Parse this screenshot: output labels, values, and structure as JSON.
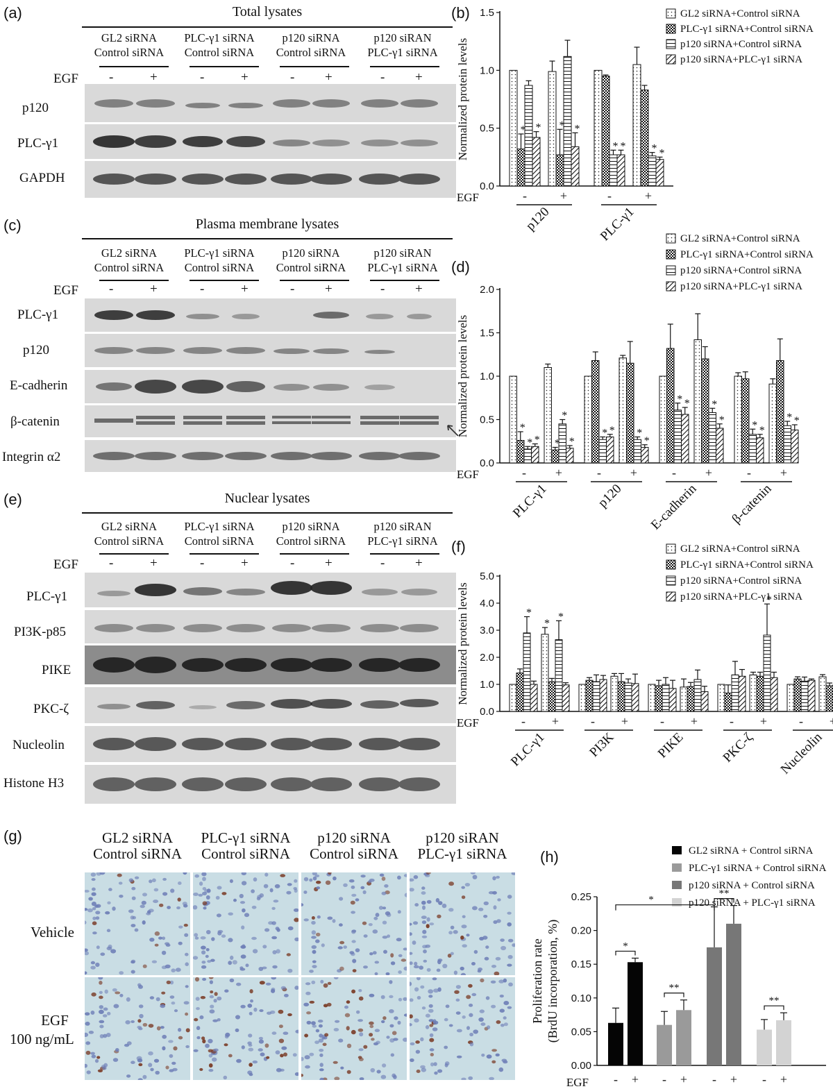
{
  "colors": {
    "blot_bg": "#d9d9d9",
    "band": "#3a3a3a",
    "cell_bg": "#c9dde4",
    "nucleus": "#6f7fb7",
    "brdu_nucleus": "#7a3b26"
  },
  "panels": {
    "a": "(a)",
    "b": "(b)",
    "c": "(c)",
    "d": "(d)",
    "e": "(e)",
    "f": "(f)",
    "g": "(g)",
    "h": "(h)"
  },
  "lane_groups": [
    {
      "line1": "GL2 siRNA",
      "line2": "Control siRNA"
    },
    {
      "line1": "PLC-γ1 siRNA",
      "line2": "Control siRNA"
    },
    {
      "line1": "p120 siRNA",
      "line2": "Control siRNA"
    },
    {
      "line1": "p120 siRAN",
      "line2": "PLC-γ1 siRNA"
    }
  ],
  "egf_label": "EGF",
  "egf_signs": [
    "-",
    "+"
  ],
  "blots": {
    "total": {
      "title": "Total lysates",
      "rows": [
        "p120",
        "PLC-γ1",
        "GAPDH"
      ]
    },
    "membrane": {
      "title": "Plasma membrane lysates",
      "rows": [
        "PLC-γ1",
        "p120",
        "E-cadherin",
        "β-catenin",
        "Integrin α2"
      ]
    },
    "nuclear": {
      "title": "Nuclear lysates",
      "rows": [
        "PLC-γ1",
        "PI3K-p85",
        "PIKE",
        "PKC-ζ",
        "Nucleolin",
        "Histone H3"
      ]
    }
  },
  "legend_bar": [
    "GL2 siRNA+Control siRNA",
    "PLC-γ1 siRNA+Control siRNA",
    "p120 siRNA+Control siRNA",
    "p120 siRNA+PLC-γ1 siRNA"
  ],
  "legend_h": [
    "GL2 siRNA + Control siRNA",
    "PLC-γ1 siRNA + Control siRNA",
    "p120 siRNA + Control siRNA",
    "p120 siRNA + PLC-γ1 siRNA"
  ],
  "histology": {
    "row_labels": [
      "Vehicle",
      "EGF"
    ],
    "egf_dose": "100 ng/mL",
    "groups": [
      {
        "line1": "GL2 siRNA",
        "line2": "Control siRNA"
      },
      {
        "line1": "PLC-γ1 siRNA",
        "line2": "Control siRNA"
      },
      {
        "line1": "p120 siRNA",
        "line2": "Control siRNA"
      },
      {
        "line1": "p120 siRAN",
        "line2": "PLC-γ1 siRNA"
      }
    ]
  },
  "chart_data": [
    {
      "panel": "(b)",
      "type": "bar",
      "ylabel": "Normalized protein levels",
      "ylim": [
        0,
        1.5
      ],
      "yticks": [
        "0.0",
        "0.5",
        "1.0",
        "1.5"
      ],
      "proteins": [
        "p120",
        "PLC-γ1"
      ],
      "egf": [
        "-",
        "+"
      ],
      "series_names": [
        "GL2 siRNA+Control siRNA",
        "PLC-γ1 siRNA+Control siRNA",
        "p120 siRNA+Control siRNA",
        "p120 siRNA+PLC-γ1 siRNA"
      ],
      "values": [
        [
          1.0,
          0.32,
          0.87,
          0.42
        ],
        [
          0.99,
          0.27,
          1.12,
          0.34
        ],
        [
          1.0,
          0.95,
          0.27,
          0.27
        ],
        [
          1.05,
          0.83,
          0.26,
          0.23
        ]
      ],
      "errors": [
        [
          0,
          0.13,
          0.04,
          0.05
        ],
        [
          0.09,
          0.22,
          0.14,
          0.12
        ],
        [
          0,
          0.01,
          0.04,
          0.04
        ],
        [
          0.15,
          0.04,
          0.03,
          0.02
        ]
      ],
      "stars": [
        [
          0,
          1,
          0,
          1
        ],
        [
          0,
          1,
          0,
          1
        ],
        [
          0,
          0,
          1,
          1
        ],
        [
          0,
          0,
          1,
          1
        ]
      ]
    },
    {
      "panel": "(d)",
      "type": "bar",
      "ylabel": "Normalized protein levels",
      "ylim": [
        0,
        2.0
      ],
      "yticks": [
        "0.0",
        "0.5",
        "1.0",
        "1.5",
        "2.0"
      ],
      "proteins": [
        "PLC-γ1",
        "p120",
        "E-cadherin",
        "β-catenin"
      ],
      "egf": [
        "-",
        "+"
      ],
      "series_names": [
        "GL2 siRNA+Control siRNA",
        "PLC-γ1 siRNA+Control siRNA",
        "p120 siRNA+Control siRNA",
        "p120 siRNA+PLC-γ1 siRNA"
      ],
      "values": [
        [
          1.0,
          0.26,
          0.16,
          0.19
        ],
        [
          1.1,
          0.15,
          0.45,
          0.17
        ],
        [
          1.0,
          1.18,
          0.27,
          0.3
        ],
        [
          1.21,
          1.15,
          0.27,
          0.18
        ],
        [
          1.0,
          1.32,
          0.61,
          0.56
        ],
        [
          1.42,
          1.2,
          0.58,
          0.4
        ],
        [
          1.0,
          0.97,
          0.33,
          0.29
        ],
        [
          0.91,
          1.18,
          0.43,
          0.38
        ]
      ],
      "errors": [
        [
          0,
          0.1,
          0.03,
          0.03
        ],
        [
          0.04,
          0.03,
          0.05,
          0.03
        ],
        [
          0,
          0.1,
          0.03,
          0.03
        ],
        [
          0.03,
          0.25,
          0.03,
          0.03
        ],
        [
          0,
          0.28,
          0.08,
          0.08
        ],
        [
          0.3,
          0.14,
          0.05,
          0.05
        ],
        [
          0.04,
          0.08,
          0.06,
          0.04
        ],
        [
          0.06,
          0.25,
          0.05,
          0.06
        ]
      ],
      "stars": [
        [
          0,
          1,
          1,
          1
        ],
        [
          0,
          1,
          1,
          1
        ],
        [
          0,
          0,
          1,
          1
        ],
        [
          0,
          0,
          1,
          1
        ],
        [
          0,
          0,
          1,
          1
        ],
        [
          0,
          0,
          1,
          1
        ],
        [
          0,
          0,
          1,
          1
        ],
        [
          0,
          0,
          1,
          1
        ]
      ]
    },
    {
      "panel": "(f)",
      "type": "bar",
      "ylabel": "Normalized protein levels",
      "ylim": [
        0,
        5.0
      ],
      "yticks": [
        "0.0",
        "1.0",
        "2.0",
        "3.0",
        "4.0",
        "5.0"
      ],
      "proteins": [
        "PLC-γ1",
        "PI3K",
        "PIKE",
        "PKC-ζ",
        "Nucleolin"
      ],
      "egf": [
        "-",
        "+"
      ],
      "series_names": [
        "GL2 siRNA+Control siRNA",
        "PLC-γ1 siRNA+Control siRNA",
        "p120 siRNA+Control siRNA",
        "p120 siRNA+PLC-γ1 siRNA"
      ],
      "values": [
        [
          1.0,
          1.42,
          2.9,
          1.0
        ],
        [
          2.85,
          1.1,
          2.65,
          0.98
        ],
        [
          1.0,
          1.15,
          1.1,
          1.18
        ],
        [
          1.3,
          1.1,
          1.05,
          1.03
        ],
        [
          1.0,
          0.95,
          1.0,
          0.85
        ],
        [
          0.9,
          0.92,
          1.18,
          0.73
        ],
        [
          1.0,
          0.68,
          1.35,
          1.3
        ],
        [
          1.35,
          1.3,
          2.82,
          1.25
        ],
        [
          1.0,
          1.2,
          1.12,
          1.15
        ],
        [
          1.28,
          0.95,
          0.98,
          1.2
        ]
      ],
      "errors": [
        [
          0,
          0.15,
          0.6,
          0.12
        ],
        [
          0.25,
          0.12,
          0.7,
          0.08
        ],
        [
          0,
          0.1,
          0.25,
          0.15
        ],
        [
          0.1,
          0.3,
          0.15,
          0.35
        ],
        [
          0,
          0.2,
          0.25,
          0.3
        ],
        [
          0.3,
          0.15,
          0.35,
          0.2
        ],
        [
          0,
          0.3,
          0.5,
          0.25
        ],
        [
          0.1,
          0.15,
          1.15,
          0.2
        ],
        [
          0,
          0.08,
          0.15,
          0.05
        ],
        [
          0.08,
          0.1,
          0.08,
          0.05
        ]
      ],
      "stars": [
        [
          0,
          0,
          1,
          0
        ],
        [
          1,
          0,
          1,
          0
        ],
        [
          0,
          0,
          0,
          0
        ],
        [
          0,
          0,
          0,
          0
        ],
        [
          0,
          0,
          0,
          0
        ],
        [
          0,
          0,
          0,
          0
        ],
        [
          0,
          0,
          0,
          0
        ],
        [
          0,
          0,
          1,
          0
        ],
        [
          0,
          0,
          0,
          0
        ],
        [
          0,
          0,
          0,
          0
        ]
      ]
    },
    {
      "panel": "(h)",
      "type": "bar",
      "ylabel_line1": "Proliferation rate",
      "ylabel_line2": "(BrdU incorporation, %)",
      "ylim": [
        0,
        0.25
      ],
      "yticks": [
        "0.00",
        "0.05",
        "0.10",
        "0.15",
        "0.20",
        "0.25"
      ],
      "egf": [
        "-",
        "+"
      ],
      "series_names": [
        "GL2 siRNA + Control siRNA",
        "PLC-γ1 siRNA + Control siRNA",
        "p120 siRNA + Control siRNA",
        "p120 siRNA + PLC-γ1 siRNA"
      ],
      "series_colors": [
        "#050505",
        "#9a9a9a",
        "#777777",
        "#d3d3d3"
      ],
      "values": [
        [
          0.063,
          0.153
        ],
        [
          0.06,
          0.082
        ],
        [
          0.175,
          0.21
        ],
        [
          0.053,
          0.067
        ]
      ],
      "errors": [
        [
          0.022,
          0.006
        ],
        [
          0.02,
          0.015
        ],
        [
          0.06,
          0.027
        ],
        [
          0.015,
          0.011
        ]
      ],
      "significance": [
        "*",
        "**",
        "**",
        "**",
        "*"
      ]
    }
  ]
}
